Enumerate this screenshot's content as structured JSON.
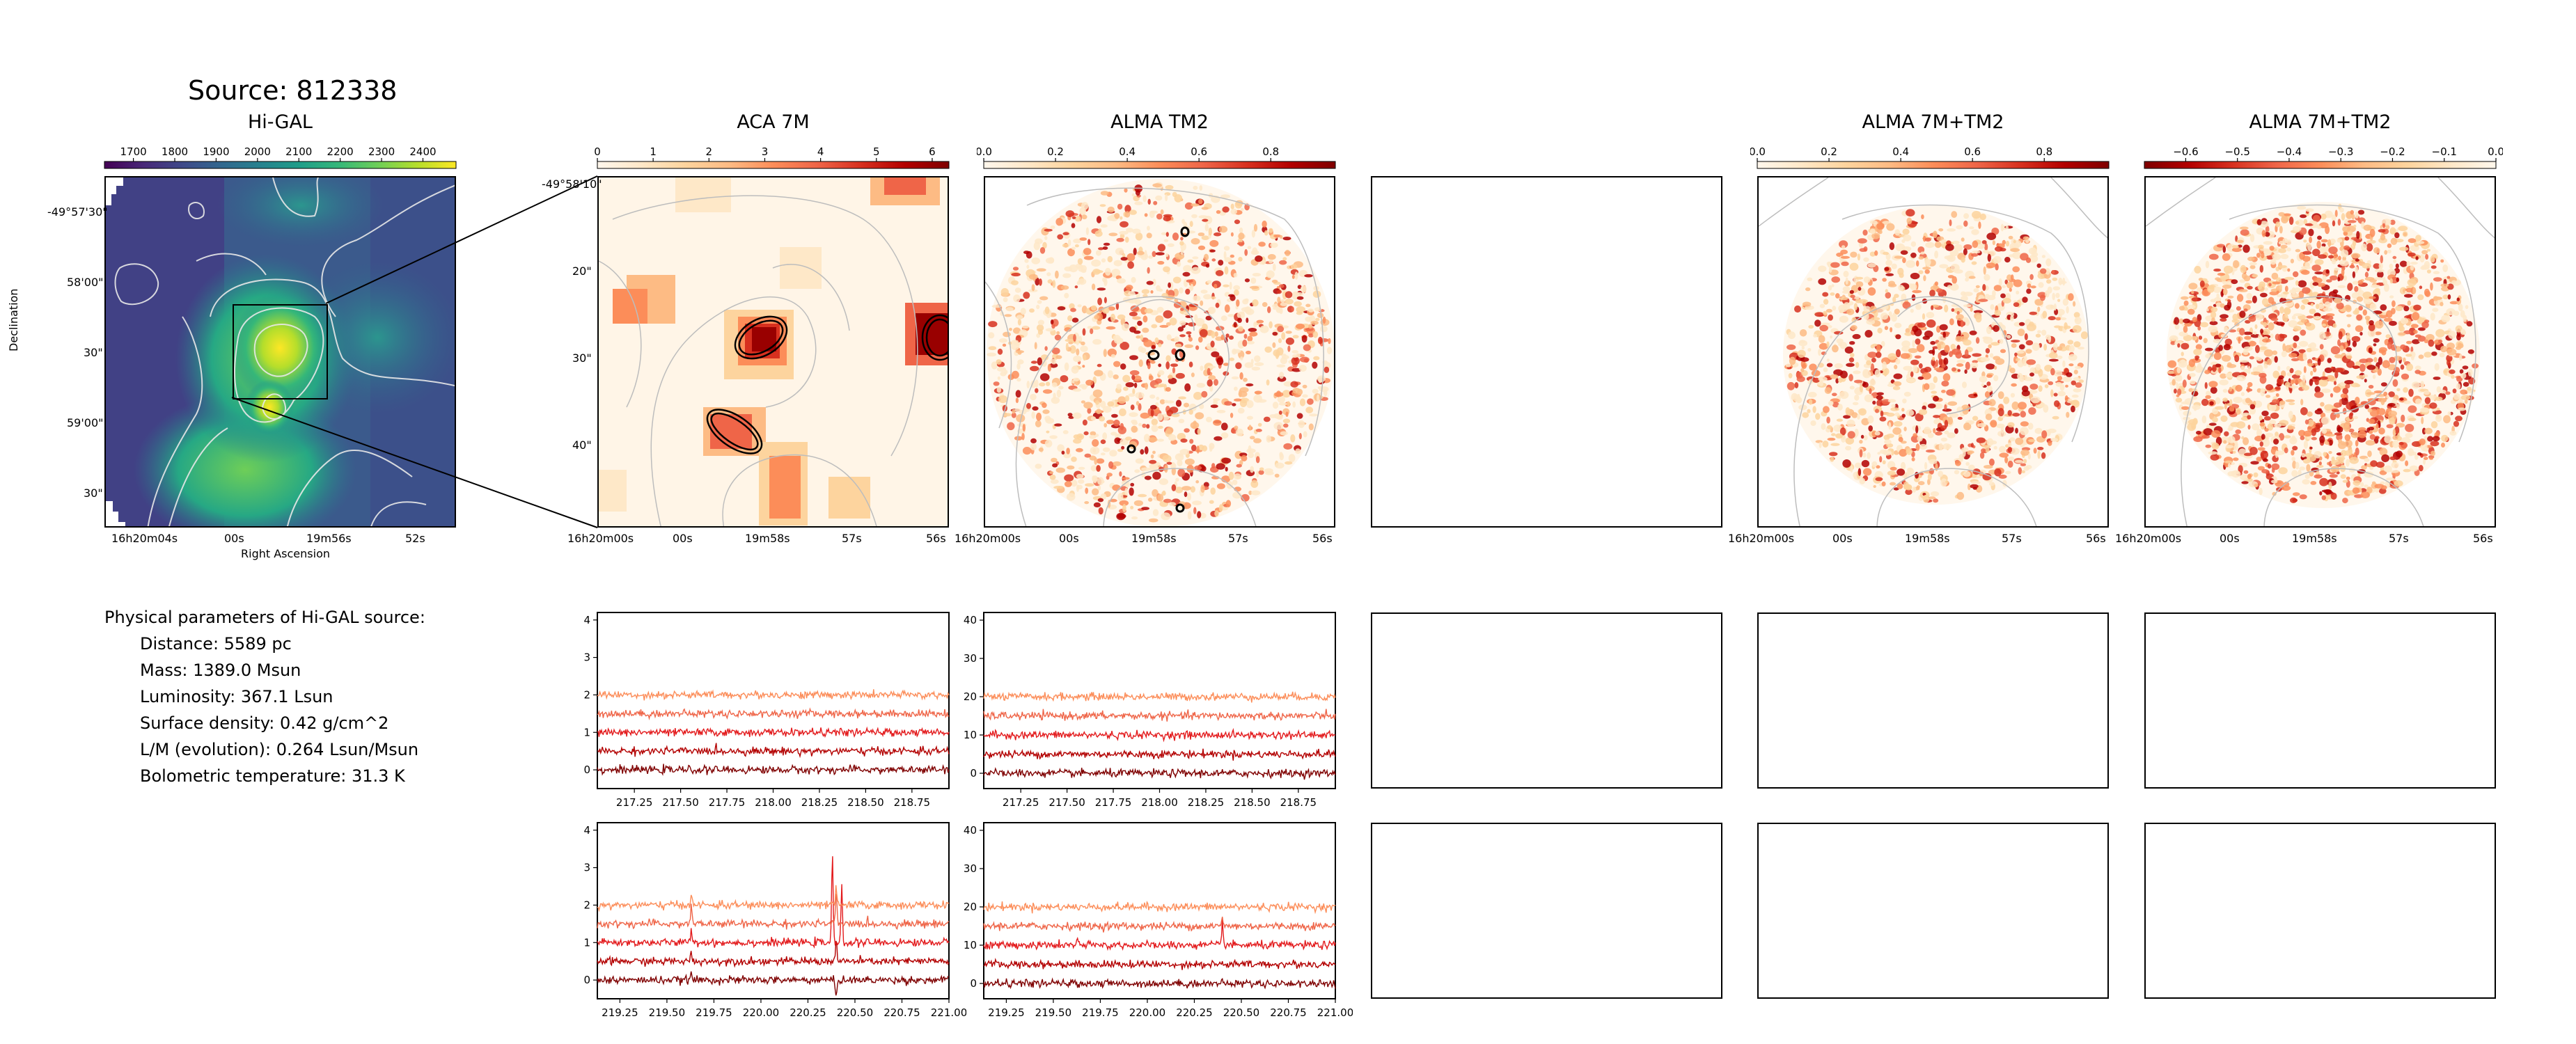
{
  "source_title": "Source: 812338",
  "panel_titles": {
    "higal": "Hi-GAL",
    "aca": "ACA 7M",
    "tm2": "ALMA TM2",
    "empty": "",
    "combo": "ALMA 7M+TM2",
    "combo_neg": "ALMA 7M+TM2"
  },
  "colorbars": {
    "higal": {
      "cmap": "viridis",
      "ticks": [
        "1700",
        "1800",
        "1900",
        "2000",
        "2100",
        "2200",
        "2300",
        "2400"
      ],
      "range": [
        1630,
        2480
      ]
    },
    "aca": {
      "cmap": "OrRd",
      "ticks": [
        "0",
        "1",
        "2",
        "3",
        "4",
        "5",
        "6"
      ],
      "range": [
        0,
        6.3
      ]
    },
    "tm2": {
      "cmap": "OrRd",
      "ticks": [
        "0.0",
        "0.2",
        "0.4",
        "0.6",
        "0.8"
      ],
      "range": [
        0.0,
        0.98
      ]
    },
    "combo": {
      "cmap": "OrRd",
      "ticks": [
        "0.0",
        "0.2",
        "0.4",
        "0.6",
        "0.8"
      ],
      "range": [
        0.0,
        0.98
      ]
    },
    "combo_neg": {
      "cmap": "OrRd_r",
      "ticks": [
        "−0.6",
        "−0.5",
        "−0.4",
        "−0.3",
        "−0.2",
        "−0.1",
        "0.0"
      ],
      "range": [
        -0.68,
        0.0
      ]
    }
  },
  "higal_axes": {
    "ylabel": "Declination",
    "xlabel": "Right Ascension",
    "yticks": [
      "-49°57'30\"",
      "58'00\"",
      "30\"",
      "59'00\"",
      "30\""
    ],
    "xticks": [
      "16h20m04s",
      "00s",
      "19m56s",
      "52s"
    ]
  },
  "zoom_axes": {
    "yticks": [
      "-49°58'10\"",
      "20\"",
      "30\"",
      "40\""
    ],
    "xticks": [
      "16h20m00s",
      "00s",
      "19m58s",
      "57s",
      "56s"
    ]
  },
  "params": {
    "heading": "Physical parameters of Hi-GAL source:",
    "lines": [
      "Distance: 5589 pc",
      "Mass: 1389.0 Msun",
      "Luminosity: 367.1 Lsun",
      "Surface density: 0.42 g/cm^2",
      "L/M (evolution): 0.264 Lsun/Msun",
      "Bolometric temperature: 31.3 K"
    ]
  },
  "chart_data": [
    {
      "type": "line",
      "panel": "ACA 7M spectra, row 1",
      "x_range": [
        217.05,
        218.95
      ],
      "xticks": [
        "217.25",
        "217.50",
        "217.75",
        "218.00",
        "218.25",
        "218.50",
        "218.75"
      ],
      "ylim": [
        -0.5,
        4.2
      ],
      "yticks": [
        "0",
        "1",
        "2",
        "3",
        "4"
      ],
      "series": [
        {
          "offset": 0.0,
          "color": "#7f0000",
          "noise": 0.05
        },
        {
          "offset": 0.5,
          "color": "#b30000",
          "noise": 0.05
        },
        {
          "offset": 1.0,
          "color": "#e31a1c",
          "noise": 0.05
        },
        {
          "offset": 1.5,
          "color": "#ef6548",
          "noise": 0.05
        },
        {
          "offset": 2.0,
          "color": "#fc8d59",
          "noise": 0.05
        }
      ]
    },
    {
      "type": "line",
      "panel": "ALMA TM2 spectra, row 1",
      "x_range": [
        217.05,
        218.95
      ],
      "xticks": [
        "217.25",
        "217.50",
        "217.75",
        "218.00",
        "218.25",
        "218.50",
        "218.75"
      ],
      "ylim": [
        -4,
        42
      ],
      "yticks": [
        "0",
        "10",
        "20",
        "30",
        "40"
      ],
      "series": [
        {
          "offset": 0,
          "color": "#7f0000",
          "noise": 0.5
        },
        {
          "offset": 5,
          "color": "#b30000",
          "noise": 0.5
        },
        {
          "offset": 10,
          "color": "#e31a1c",
          "noise": 0.5
        },
        {
          "offset": 15,
          "color": "#ef6548",
          "noise": 0.5
        },
        {
          "offset": 20,
          "color": "#fc8d59",
          "noise": 0.5
        }
      ]
    },
    {
      "type": "line",
      "panel": "ACA 7M spectra, row 2",
      "x_range": [
        219.13,
        221.0
      ],
      "xticks": [
        "219.25",
        "219.50",
        "219.75",
        "220.00",
        "220.25",
        "220.50",
        "220.75",
        "221.00"
      ],
      "ylim": [
        -0.5,
        4.2
      ],
      "yticks": [
        "0",
        "1",
        "2",
        "3",
        "4"
      ],
      "series": [
        {
          "offset": 0.0,
          "color": "#7f0000",
          "noise": 0.05,
          "peaks": [
            [
              220.4,
              -0.5
            ],
            [
              219.63,
              0.2
            ]
          ]
        },
        {
          "offset": 0.5,
          "color": "#b30000",
          "noise": 0.05,
          "peaks": [
            [
              220.4,
              0.6
            ],
            [
              219.63,
              0.25
            ]
          ]
        },
        {
          "offset": 1.0,
          "color": "#e31a1c",
          "noise": 0.05,
          "peaks": [
            [
              220.38,
              2.4
            ],
            [
              220.43,
              1.5
            ],
            [
              219.63,
              0.4
            ]
          ]
        },
        {
          "offset": 1.5,
          "color": "#ef6548",
          "noise": 0.05,
          "peaks": [
            [
              220.4,
              0.8
            ],
            [
              219.63,
              0.5
            ]
          ]
        },
        {
          "offset": 2.0,
          "color": "#fc8d59",
          "noise": 0.05,
          "peaks": [
            [
              220.4,
              0.5
            ],
            [
              219.63,
              0.35
            ]
          ]
        }
      ]
    },
    {
      "type": "line",
      "panel": "ALMA TM2 spectra, row 2",
      "x_range": [
        219.13,
        221.0
      ],
      "xticks": [
        "219.25",
        "219.50",
        "219.75",
        "220.00",
        "220.25",
        "220.50",
        "220.75",
        "221.00"
      ],
      "ylim": [
        -4,
        42
      ],
      "yticks": [
        "0",
        "10",
        "20",
        "30",
        "40"
      ],
      "series": [
        {
          "offset": 0,
          "color": "#7f0000",
          "noise": 0.5
        },
        {
          "offset": 5,
          "color": "#b30000",
          "noise": 0.5
        },
        {
          "offset": 10,
          "color": "#e31a1c",
          "noise": 0.5,
          "peaks": [
            [
              220.4,
              6.5
            ],
            [
              219.63,
              1.5
            ]
          ]
        },
        {
          "offset": 15,
          "color": "#ef6548",
          "noise": 0.5,
          "peaks": [
            [
              220.4,
              2.0
            ]
          ]
        },
        {
          "offset": 20,
          "color": "#fc8d59",
          "noise": 0.5
        }
      ]
    }
  ]
}
